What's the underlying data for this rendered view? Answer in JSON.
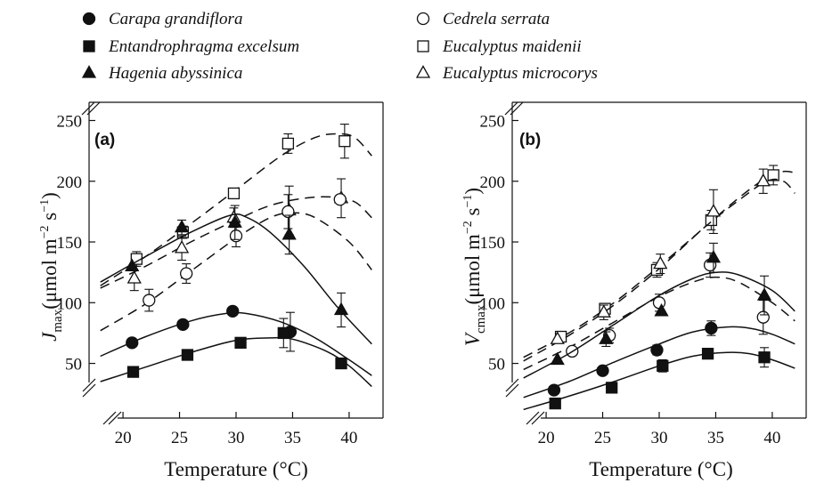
{
  "legend": [
    {
      "name": "Carapa grandiflora",
      "marker": "circle",
      "filled": true
    },
    {
      "name": "Cedrela serrata",
      "marker": "circle",
      "filled": false
    },
    {
      "name": "Entandrophragma excelsum",
      "marker": "square",
      "filled": true
    },
    {
      "name": "Eucalyptus maidenii",
      "marker": "square",
      "filled": false
    },
    {
      "name": "Hagenia abyssinica",
      "marker": "triangle",
      "filled": true
    },
    {
      "name": "Eucalyptus microcorys",
      "marker": "triangle",
      "filled": false
    }
  ],
  "chart_data": [
    {
      "type": "scatter",
      "panel_label": "(a)",
      "title": "",
      "xlabel": "Temperature (°C)",
      "ylabel_base": "J",
      "ylabel_sub": "max",
      "ylabel_unit": "(μmol m",
      "ylabel_exp1": "−2",
      "ylabel_mid": " s",
      "ylabel_exp2": "−1",
      "ylabel_close": ")",
      "xlim": [
        17,
        43
      ],
      "ylim": [
        5,
        265
      ],
      "xticks": [
        20,
        25,
        30,
        35,
        40
      ],
      "yticks": [
        50,
        100,
        150,
        200,
        250
      ],
      "grid": false,
      "series": [
        {
          "name": "Eucalyptus maidenii",
          "marker": "square",
          "filled": false,
          "line": "dashed",
          "points": [
            {
              "x": 21.2,
              "y": 136,
              "e": 6
            },
            {
              "x": 25.3,
              "y": 158,
              "e": 5
            },
            {
              "x": 29.8,
              "y": 190,
              "e": 0
            },
            {
              "x": 34.6,
              "y": 231,
              "e": 8
            },
            {
              "x": 39.6,
              "y": 233,
              "e": 14
            }
          ],
          "curve": [
            [
              18,
              114
            ],
            [
              22,
              138
            ],
            [
              26,
              165
            ],
            [
              30,
              193
            ],
            [
              34,
              221
            ],
            [
              37,
              236
            ],
            [
              39,
              239
            ],
            [
              40.5,
              236
            ],
            [
              42,
              221
            ]
          ]
        },
        {
          "name": "Eucalyptus microcorys",
          "marker": "triangle",
          "filled": false,
          "line": "dashed",
          "points": [
            {
              "x": 21,
              "y": 120,
              "e": 10
            },
            {
              "x": 25.2,
              "y": 145,
              "e": 10
            },
            {
              "x": 29.8,
              "y": 170,
              "e": 8
            },
            {
              "x": 34.7,
              "y": 176,
              "e": 20
            },
            {
              "x": 39.3,
              "y": 186,
              "e": 16
            }
          ],
          "curve": [
            [
              18,
              112
            ],
            [
              22,
              130
            ],
            [
              26,
              150
            ],
            [
              30,
              168
            ],
            [
              33,
              180
            ],
            [
              36,
              186
            ],
            [
              38.5,
              187
            ],
            [
              40.5,
              183
            ],
            [
              42,
              170
            ]
          ]
        },
        {
          "name": "Cedrela serrata",
          "marker": "circle",
          "filled": false,
          "line": "dashed",
          "points": [
            {
              "x": 22.3,
              "y": 102,
              "e": 9
            },
            {
              "x": 25.6,
              "y": 124,
              "e": 8
            },
            {
              "x": 30,
              "y": 155,
              "e": 9
            },
            {
              "x": 34.6,
              "y": 175,
              "e": 14
            },
            {
              "x": 39.2,
              "y": 185,
              "e": 0
            }
          ],
          "curve": [
            [
              18,
              77
            ],
            [
              22,
              99
            ],
            [
              26,
              126
            ],
            [
              30,
              153
            ],
            [
              33,
              170
            ],
            [
              35,
              174
            ],
            [
              37,
              170
            ],
            [
              40,
              150
            ],
            [
              42,
              127
            ]
          ]
        },
        {
          "name": "Hagenia abyssinica",
          "marker": "triangle",
          "filled": true,
          "line": "solid",
          "points": [
            {
              "x": 20.8,
              "y": 130,
              "e": 0
            },
            {
              "x": 25.2,
              "y": 162,
              "e": 6
            },
            {
              "x": 29.9,
              "y": 166,
              "e": 14
            },
            {
              "x": 34.7,
              "y": 156,
              "e": 16
            },
            {
              "x": 39.3,
              "y": 94,
              "e": 14
            }
          ],
          "curve": [
            [
              18,
              117
            ],
            [
              22,
              138
            ],
            [
              26,
              158
            ],
            [
              29.5,
              172
            ],
            [
              31,
              170
            ],
            [
              33,
              158
            ],
            [
              36,
              130
            ],
            [
              39,
              96
            ],
            [
              42,
              66
            ]
          ]
        },
        {
          "name": "Carapa grandiflora",
          "marker": "circle",
          "filled": true,
          "line": "solid",
          "points": [
            {
              "x": 20.8,
              "y": 67,
              "e": 0
            },
            {
              "x": 25.3,
              "y": 82,
              "e": 0
            },
            {
              "x": 29.7,
              "y": 93,
              "e": 0
            },
            {
              "x": 34.8,
              "y": 76,
              "e": 16
            }
          ],
          "curve": [
            [
              18,
              56
            ],
            [
              22,
              72
            ],
            [
              26,
              85
            ],
            [
              29,
              91
            ],
            [
              31,
              91
            ],
            [
              34,
              84
            ],
            [
              37,
              71
            ],
            [
              40,
              53
            ],
            [
              42,
              40
            ]
          ]
        },
        {
          "name": "Entandrophragma excelsum",
          "marker": "square",
          "filled": true,
          "line": "solid",
          "points": [
            {
              "x": 20.9,
              "y": 43,
              "e": 0
            },
            {
              "x": 25.7,
              "y": 57,
              "e": 0
            },
            {
              "x": 30.4,
              "y": 67,
              "e": 0
            },
            {
              "x": 34.2,
              "y": 75,
              "e": 12
            },
            {
              "x": 39.3,
              "y": 50,
              "e": 0
            }
          ],
          "curve": [
            [
              18,
              35
            ],
            [
              22,
              47
            ],
            [
              26,
              59
            ],
            [
              30,
              69
            ],
            [
              33,
              71
            ],
            [
              35,
              70
            ],
            [
              38,
              60
            ],
            [
              40,
              48
            ],
            [
              42,
              31
            ]
          ]
        }
      ]
    },
    {
      "type": "scatter",
      "panel_label": "(b)",
      "title": "",
      "xlabel": "Temperature (°C)",
      "ylabel_base": "V",
      "ylabel_sub": "cmax",
      "ylabel_unit": "(μmol m",
      "ylabel_exp1": "−2",
      "ylabel_mid": " s",
      "ylabel_exp2": "−1",
      "ylabel_close": ")",
      "xlim": [
        17,
        43
      ],
      "ylim": [
        5,
        265
      ],
      "xticks": [
        20,
        25,
        30,
        35,
        40
      ],
      "yticks": [
        50,
        100,
        150,
        200,
        250
      ],
      "grid": false,
      "series": [
        {
          "name": "Eucalyptus maidenii",
          "marker": "square",
          "filled": false,
          "line": "dashed",
          "points": [
            {
              "x": 21.3,
              "y": 72,
              "e": 4
            },
            {
              "x": 25.2,
              "y": 95,
              "e": 4
            },
            {
              "x": 29.8,
              "y": 127,
              "e": 6
            },
            {
              "x": 34.6,
              "y": 168,
              "e": 8
            },
            {
              "x": 40.1,
              "y": 205,
              "e": 8
            }
          ],
          "curve": [
            [
              18,
              55
            ],
            [
              22,
              75
            ],
            [
              26,
              100
            ],
            [
              30,
              130
            ],
            [
              34,
              162
            ],
            [
              37,
              186
            ],
            [
              39.5,
              203
            ],
            [
              41,
              208
            ],
            [
              42,
              207
            ]
          ]
        },
        {
          "name": "Eucalyptus microcorys",
          "marker": "triangle",
          "filled": false,
          "line": "dashed",
          "points": [
            {
              "x": 21,
              "y": 70,
              "e": 0
            },
            {
              "x": 25.1,
              "y": 92,
              "e": 6
            },
            {
              "x": 30.1,
              "y": 132,
              "e": 8
            },
            {
              "x": 34.8,
              "y": 175,
              "e": 18
            },
            {
              "x": 39.2,
              "y": 200,
              "e": 10
            }
          ],
          "curve": [
            [
              18,
              52
            ],
            [
              22,
              73
            ],
            [
              26,
              98
            ],
            [
              30,
              128
            ],
            [
              34,
              162
            ],
            [
              37,
              184
            ],
            [
              39.5,
              200
            ],
            [
              41,
              200
            ],
            [
              42,
              190
            ]
          ]
        },
        {
          "name": "Cedrela serrata",
          "marker": "circle",
          "filled": false,
          "line": "dashed",
          "points": [
            {
              "x": 22.3,
              "y": 60,
              "e": 0
            },
            {
              "x": 25.6,
              "y": 73,
              "e": 6
            },
            {
              "x": 30,
              "y": 100,
              "e": 7
            },
            {
              "x": 34.5,
              "y": 131,
              "e": 10
            },
            {
              "x": 39.2,
              "y": 88,
              "e": 14
            }
          ],
          "curve": [
            [
              18,
              45
            ],
            [
              22,
              63
            ],
            [
              26,
              84
            ],
            [
              30,
              105
            ],
            [
              33,
              117
            ],
            [
              35,
              121
            ],
            [
              37,
              117
            ],
            [
              40,
              100
            ],
            [
              42,
              85
            ]
          ]
        },
        {
          "name": "Hagenia abyssinica",
          "marker": "triangle",
          "filled": true,
          "line": "solid",
          "points": [
            {
              "x": 21,
              "y": 53,
              "e": 0
            },
            {
              "x": 25.3,
              "y": 70,
              "e": 6
            },
            {
              "x": 30.2,
              "y": 93,
              "e": 0
            },
            {
              "x": 34.8,
              "y": 137,
              "e": 12
            },
            {
              "x": 39.3,
              "y": 106,
              "e": 16
            }
          ],
          "curve": [
            [
              18,
              38
            ],
            [
              22,
              58
            ],
            [
              26,
              82
            ],
            [
              30,
              106
            ],
            [
              33,
              120
            ],
            [
              35,
              125
            ],
            [
              37,
              123
            ],
            [
              40,
              110
            ],
            [
              42,
              93
            ]
          ]
        },
        {
          "name": "Carapa grandiflora",
          "marker": "circle",
          "filled": true,
          "line": "solid",
          "points": [
            {
              "x": 20.7,
              "y": 28,
              "e": 0
            },
            {
              "x": 25,
              "y": 44,
              "e": 0
            },
            {
              "x": 29.8,
              "y": 61,
              "e": 4
            },
            {
              "x": 34.6,
              "y": 79,
              "e": 6
            }
          ],
          "curve": [
            [
              18,
              22
            ],
            [
              22,
              35
            ],
            [
              26,
              51
            ],
            [
              30,
              66
            ],
            [
              33,
              76
            ],
            [
              36,
              80
            ],
            [
              38,
              79
            ],
            [
              40,
              74
            ],
            [
              42,
              66
            ]
          ]
        },
        {
          "name": "Entandrophragma excelsum",
          "marker": "square",
          "filled": true,
          "line": "solid",
          "points": [
            {
              "x": 20.8,
              "y": 17,
              "e": 0
            },
            {
              "x": 25.8,
              "y": 30,
              "e": 0
            },
            {
              "x": 30.3,
              "y": 48,
              "e": 5
            },
            {
              "x": 34.3,
              "y": 58,
              "e": 0
            },
            {
              "x": 39.3,
              "y": 55,
              "e": 8
            }
          ],
          "curve": [
            [
              18,
              12
            ],
            [
              22,
              23
            ],
            [
              26,
              35
            ],
            [
              30,
              48
            ],
            [
              33,
              56
            ],
            [
              36,
              59
            ],
            [
              38,
              58
            ],
            [
              40,
              53
            ],
            [
              42,
              46
            ]
          ]
        }
      ]
    }
  ]
}
